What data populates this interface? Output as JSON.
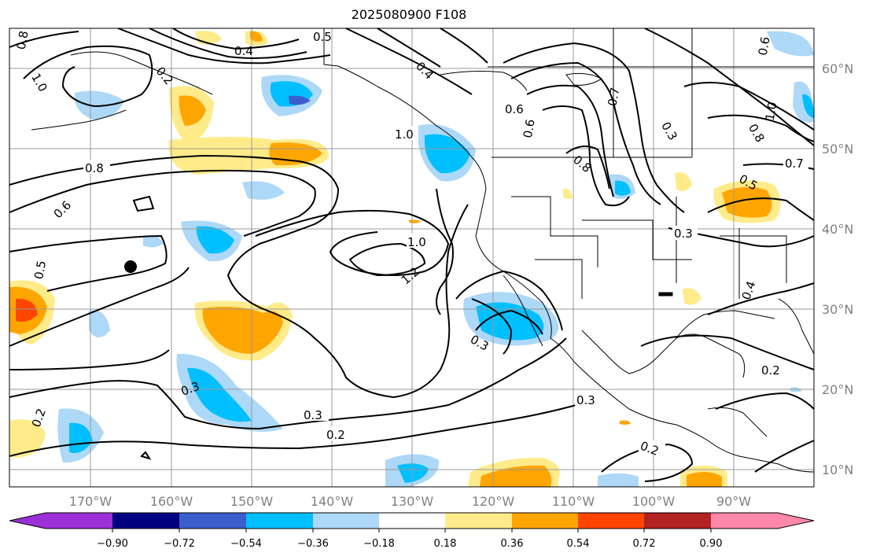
{
  "title": "2025080900 F108",
  "lon_labels": [
    "170°W",
    "160°W",
    "150°W",
    "140°W",
    "130°W",
    "120°W",
    "110°W",
    "100°W",
    "90°W"
  ],
  "lat_labels": [
    "60°N",
    "50°N",
    "40°N",
    "30°N",
    "20°N",
    "10°N"
  ],
  "colorbar": {
    "ticks": [
      "−0.90",
      "−0.72",
      "−0.54",
      "−0.36",
      "−0.18",
      "0.18",
      "0.36",
      "0.54",
      "0.72",
      "0.90"
    ],
    "colors": [
      "#9b30d9",
      "#000080",
      "#3a5fcd",
      "#00bfff",
      "#add8f7",
      "#ffffff",
      "#ffeb8a",
      "#ffa500",
      "#ff4500",
      "#b22222",
      "#ff88aa"
    ]
  },
  "contour_labels": [
    "0.8",
    "1.0",
    "0.4",
    "0.5",
    "0.4",
    "1.0",
    "0.6",
    "0.7",
    "0.6",
    "0.8",
    "1.0",
    "0.8",
    "0.7",
    "0.6",
    "0.8",
    "0.6",
    "1.0",
    "1.2",
    "0.5",
    "0.3",
    "0.3",
    "0.3",
    "0.2",
    "0.3",
    "0.2",
    "0.3",
    "0.2",
    "0.4",
    "0.2",
    "0.3",
    "0.2",
    "0.5"
  ],
  "colors": {
    "land_line": "#000000",
    "grid": "#999999",
    "contour": "#000000"
  }
}
